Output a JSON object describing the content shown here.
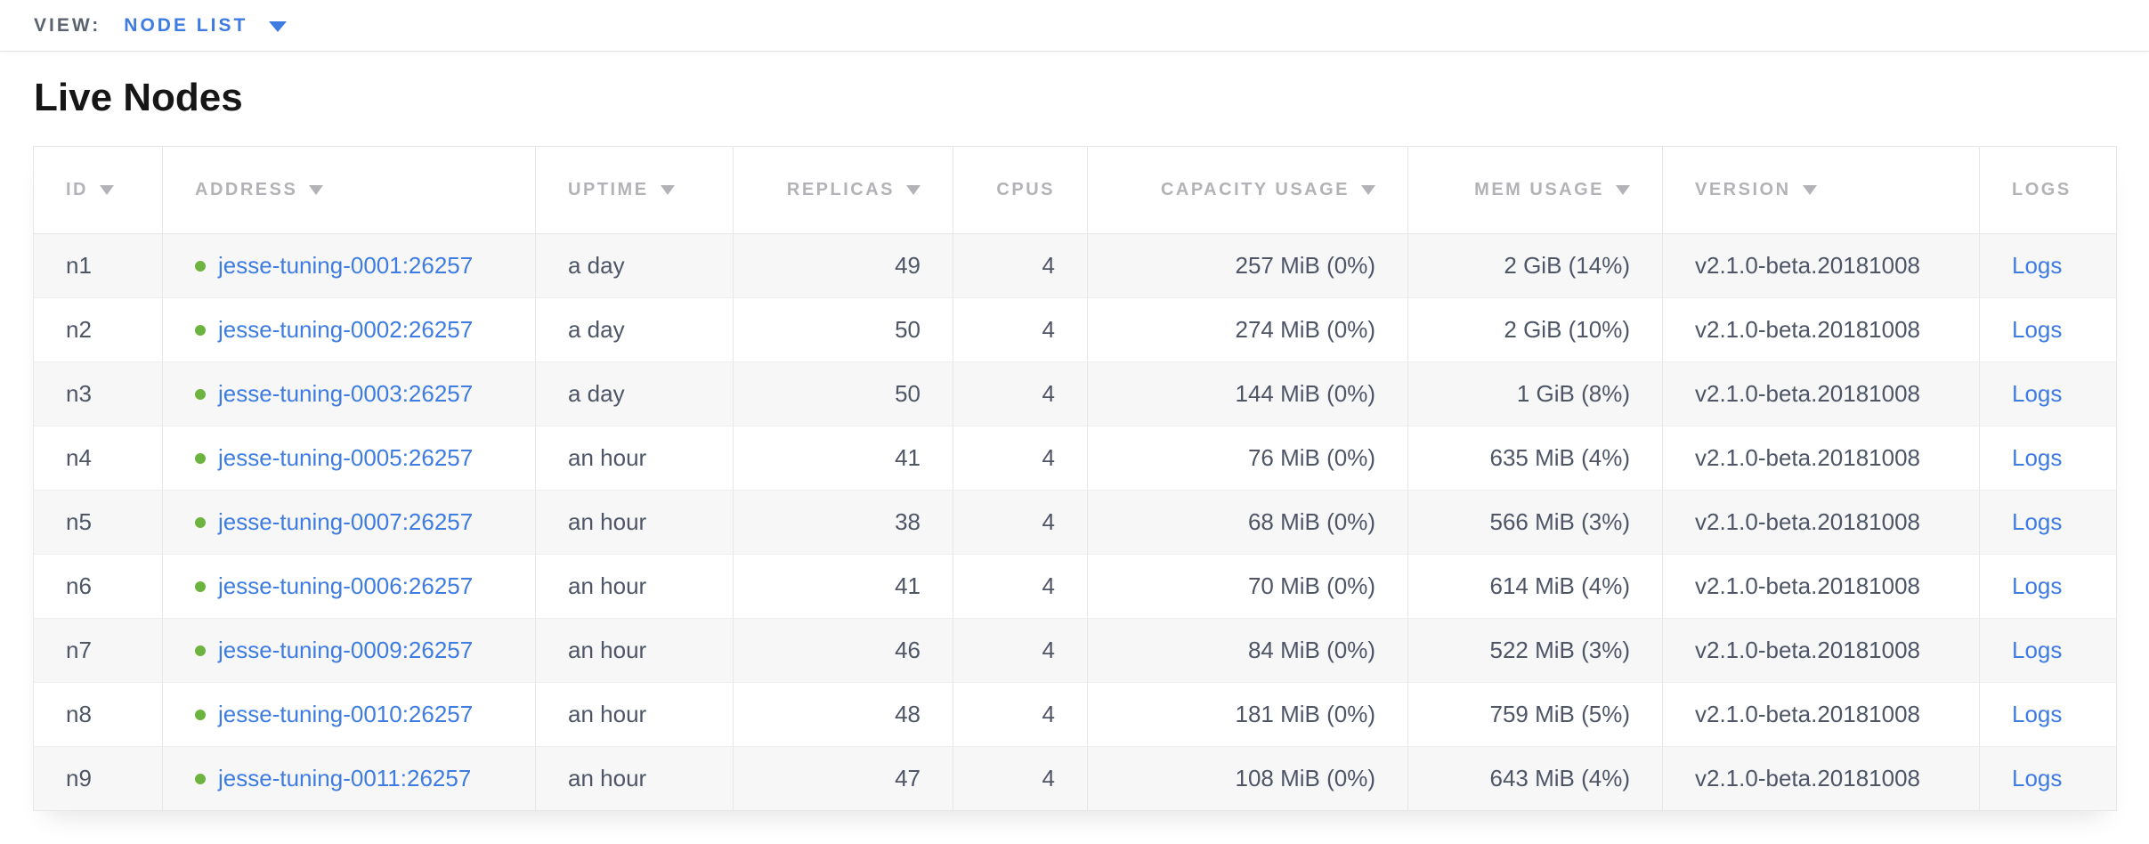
{
  "view_bar": {
    "label": "VIEW:",
    "selected": "NODE LIST",
    "dropdown_icon": "chevron-down-icon"
  },
  "page": {
    "title": "Live Nodes"
  },
  "table": {
    "columns": [
      {
        "key": "id",
        "label": "ID",
        "sorted": true
      },
      {
        "key": "address",
        "label": "ADDRESS",
        "sorted": true
      },
      {
        "key": "uptime",
        "label": "UPTIME",
        "sorted": true
      },
      {
        "key": "replicas",
        "label": "REPLICAS",
        "sorted": true
      },
      {
        "key": "cpus",
        "label": "CPUS",
        "sorted": false
      },
      {
        "key": "capacity",
        "label": "CAPACITY USAGE",
        "sorted": true
      },
      {
        "key": "mem",
        "label": "MEM USAGE",
        "sorted": true
      },
      {
        "key": "version",
        "label": "VERSION",
        "sorted": true
      },
      {
        "key": "logs",
        "label": "LOGS",
        "sorted": false
      }
    ],
    "rows": [
      {
        "id": "n1",
        "status": "live",
        "address": "jesse-tuning-0001:26257",
        "uptime": "a day",
        "replicas": "49",
        "cpus": "4",
        "capacity": "257 MiB (0%)",
        "mem": "2 GiB (14%)",
        "version": "v2.1.0-beta.20181008",
        "logs": "Logs"
      },
      {
        "id": "n2",
        "status": "live",
        "address": "jesse-tuning-0002:26257",
        "uptime": "a day",
        "replicas": "50",
        "cpus": "4",
        "capacity": "274 MiB (0%)",
        "mem": "2 GiB (10%)",
        "version": "v2.1.0-beta.20181008",
        "logs": "Logs"
      },
      {
        "id": "n3",
        "status": "live",
        "address": "jesse-tuning-0003:26257",
        "uptime": "a day",
        "replicas": "50",
        "cpus": "4",
        "capacity": "144 MiB (0%)",
        "mem": "1 GiB (8%)",
        "version": "v2.1.0-beta.20181008",
        "logs": "Logs"
      },
      {
        "id": "n4",
        "status": "live",
        "address": "jesse-tuning-0005:26257",
        "uptime": "an hour",
        "replicas": "41",
        "cpus": "4",
        "capacity": "76 MiB (0%)",
        "mem": "635 MiB (4%)",
        "version": "v2.1.0-beta.20181008",
        "logs": "Logs"
      },
      {
        "id": "n5",
        "status": "live",
        "address": "jesse-tuning-0007:26257",
        "uptime": "an hour",
        "replicas": "38",
        "cpus": "4",
        "capacity": "68 MiB (0%)",
        "mem": "566 MiB (3%)",
        "version": "v2.1.0-beta.20181008",
        "logs": "Logs"
      },
      {
        "id": "n6",
        "status": "live",
        "address": "jesse-tuning-0006:26257",
        "uptime": "an hour",
        "replicas": "41",
        "cpus": "4",
        "capacity": "70 MiB (0%)",
        "mem": "614 MiB (4%)",
        "version": "v2.1.0-beta.20181008",
        "logs": "Logs"
      },
      {
        "id": "n7",
        "status": "live",
        "address": "jesse-tuning-0009:26257",
        "uptime": "an hour",
        "replicas": "46",
        "cpus": "4",
        "capacity": "84 MiB (0%)",
        "mem": "522 MiB (3%)",
        "version": "v2.1.0-beta.20181008",
        "logs": "Logs"
      },
      {
        "id": "n8",
        "status": "live",
        "address": "jesse-tuning-0010:26257",
        "uptime": "an hour",
        "replicas": "48",
        "cpus": "4",
        "capacity": "181 MiB (0%)",
        "mem": "759 MiB (5%)",
        "version": "v2.1.0-beta.20181008",
        "logs": "Logs"
      },
      {
        "id": "n9",
        "status": "live",
        "address": "jesse-tuning-0011:26257",
        "uptime": "an hour",
        "replicas": "47",
        "cpus": "4",
        "capacity": "108 MiB (0%)",
        "mem": "643 MiB (4%)",
        "version": "v2.1.0-beta.20181008",
        "logs": "Logs"
      }
    ]
  },
  "colors": {
    "accent_blue": "#3e7ce1",
    "live_green": "#6db33f",
    "header_gray": "#b3b3b7",
    "text": "#4d5566"
  }
}
